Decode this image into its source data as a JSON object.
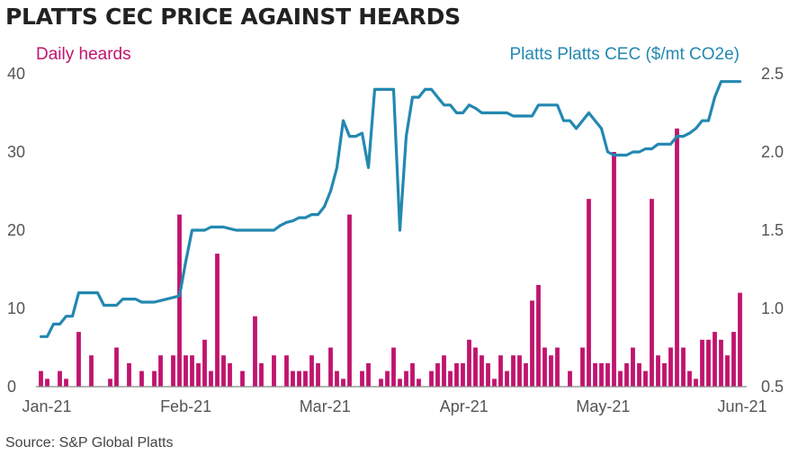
{
  "chart_data": {
    "type": "bar+line",
    "title": "PLATTS CEC PRICE AGAINST HEARDS",
    "source": "Source: S&P Global Platts",
    "x_ticks": [
      "Jan-21",
      "Feb-21",
      "Mar-21",
      "Apr-21",
      "May-21",
      "Jun-21"
    ],
    "left_axis": {
      "label": "Daily heards",
      "ticks": [
        "0",
        "10",
        "20",
        "30",
        "40"
      ],
      "range": [
        0,
        40
      ]
    },
    "right_axis": {
      "label": "Platts Platts CEC ($/mt CO2e)",
      "ticks": [
        "0.5",
        "1.0",
        "1.5",
        "2.0",
        "2.5"
      ],
      "range": [
        0.5,
        2.5
      ]
    },
    "colors": {
      "bars": "#c0146e",
      "line": "#2388b0",
      "axis": "#888888",
      "title": "#222222"
    },
    "series": [
      {
        "name": "Daily heards",
        "kind": "bar",
        "x": [
          0,
          1,
          3,
          4,
          6,
          8,
          11,
          12,
          14,
          16,
          18,
          19,
          21,
          22,
          23,
          24,
          25,
          26,
          27,
          28,
          29,
          30,
          32,
          34,
          35,
          37,
          39,
          40,
          41,
          42,
          43,
          44,
          46,
          47,
          48,
          49,
          51,
          52,
          54,
          55,
          56,
          57,
          58,
          59,
          60,
          62,
          63,
          64,
          65,
          66,
          67,
          68,
          69,
          70,
          71,
          72,
          73,
          74,
          75,
          76,
          77,
          78,
          79,
          80,
          81,
          82,
          84,
          86,
          87,
          88,
          89,
          90,
          91,
          92,
          93,
          94,
          95,
          96,
          97,
          98,
          99,
          100,
          101,
          102,
          103,
          104,
          105,
          106,
          107,
          108,
          109,
          110,
          111
        ],
        "values": [
          2,
          1,
          2,
          1,
          7,
          4,
          1,
          5,
          3,
          2,
          2,
          4,
          4,
          22,
          4,
          4,
          3,
          6,
          2,
          17,
          4,
          3,
          2,
          9,
          3,
          4,
          4,
          2,
          2,
          2,
          4,
          3,
          5,
          2,
          1,
          22,
          2,
          3,
          1,
          2,
          5,
          1,
          2,
          3,
          1,
          2,
          3,
          4,
          2,
          3,
          3,
          6,
          5,
          4,
          3,
          1,
          4,
          2,
          4,
          4,
          3,
          11,
          13,
          5,
          4,
          5,
          2,
          5,
          24,
          3,
          3,
          3,
          30,
          2,
          3,
          5,
          3,
          2,
          24,
          4,
          3,
          5,
          33,
          5,
          2,
          1,
          6,
          6,
          7,
          6,
          4,
          7,
          12
        ]
      },
      {
        "name": "Platts Platts CEC ($/mt CO2e)",
        "kind": "line",
        "x": [
          0,
          1,
          2,
          3,
          4,
          5,
          6,
          7,
          8,
          9,
          10,
          11,
          12,
          13,
          14,
          15,
          16,
          17,
          18,
          19,
          20,
          21,
          22,
          23,
          24,
          25,
          26,
          27,
          28,
          29,
          30,
          31,
          32,
          33,
          34,
          35,
          36,
          37,
          38,
          39,
          40,
          41,
          42,
          43,
          44,
          45,
          46,
          47,
          48,
          49,
          50,
          51,
          52,
          53,
          54,
          55,
          56,
          57,
          58,
          59,
          60,
          61,
          62,
          63,
          64,
          65,
          66,
          67,
          68,
          69,
          70,
          71,
          72,
          73,
          74,
          75,
          76,
          77,
          78,
          79,
          80,
          81,
          82,
          83,
          84,
          85,
          86,
          87,
          88,
          89,
          90,
          91,
          92,
          93,
          94,
          95,
          96,
          97,
          98,
          99,
          100,
          101,
          102,
          103,
          104,
          105,
          106,
          107,
          108,
          109,
          110,
          111
        ],
        "values": [
          0.82,
          0.82,
          0.9,
          0.9,
          0.95,
          0.95,
          1.1,
          1.1,
          1.1,
          1.1,
          1.02,
          1.02,
          1.02,
          1.06,
          1.06,
          1.06,
          1.04,
          1.04,
          1.04,
          1.05,
          1.06,
          1.07,
          1.08,
          1.3,
          1.5,
          1.5,
          1.5,
          1.52,
          1.52,
          1.52,
          1.51,
          1.5,
          1.5,
          1.5,
          1.5,
          1.5,
          1.5,
          1.5,
          1.53,
          1.55,
          1.56,
          1.58,
          1.58,
          1.6,
          1.6,
          1.65,
          1.75,
          1.9,
          2.2,
          2.1,
          2.1,
          2.12,
          1.9,
          2.4,
          2.4,
          2.4,
          2.4,
          1.5,
          2.1,
          2.35,
          2.35,
          2.4,
          2.4,
          2.35,
          2.3,
          2.3,
          2.25,
          2.25,
          2.3,
          2.28,
          2.25,
          2.25,
          2.25,
          2.25,
          2.25,
          2.23,
          2.23,
          2.23,
          2.23,
          2.3,
          2.3,
          2.3,
          2.3,
          2.2,
          2.2,
          2.15,
          2.2,
          2.25,
          2.2,
          2.15,
          2.0,
          1.98,
          1.98,
          1.98,
          2.0,
          2.0,
          2.02,
          2.02,
          2.05,
          2.05,
          2.05,
          2.1,
          2.1,
          2.12,
          2.15,
          2.2,
          2.2,
          2.35,
          2.45,
          2.45,
          2.45,
          2.45
        ]
      }
    ]
  }
}
